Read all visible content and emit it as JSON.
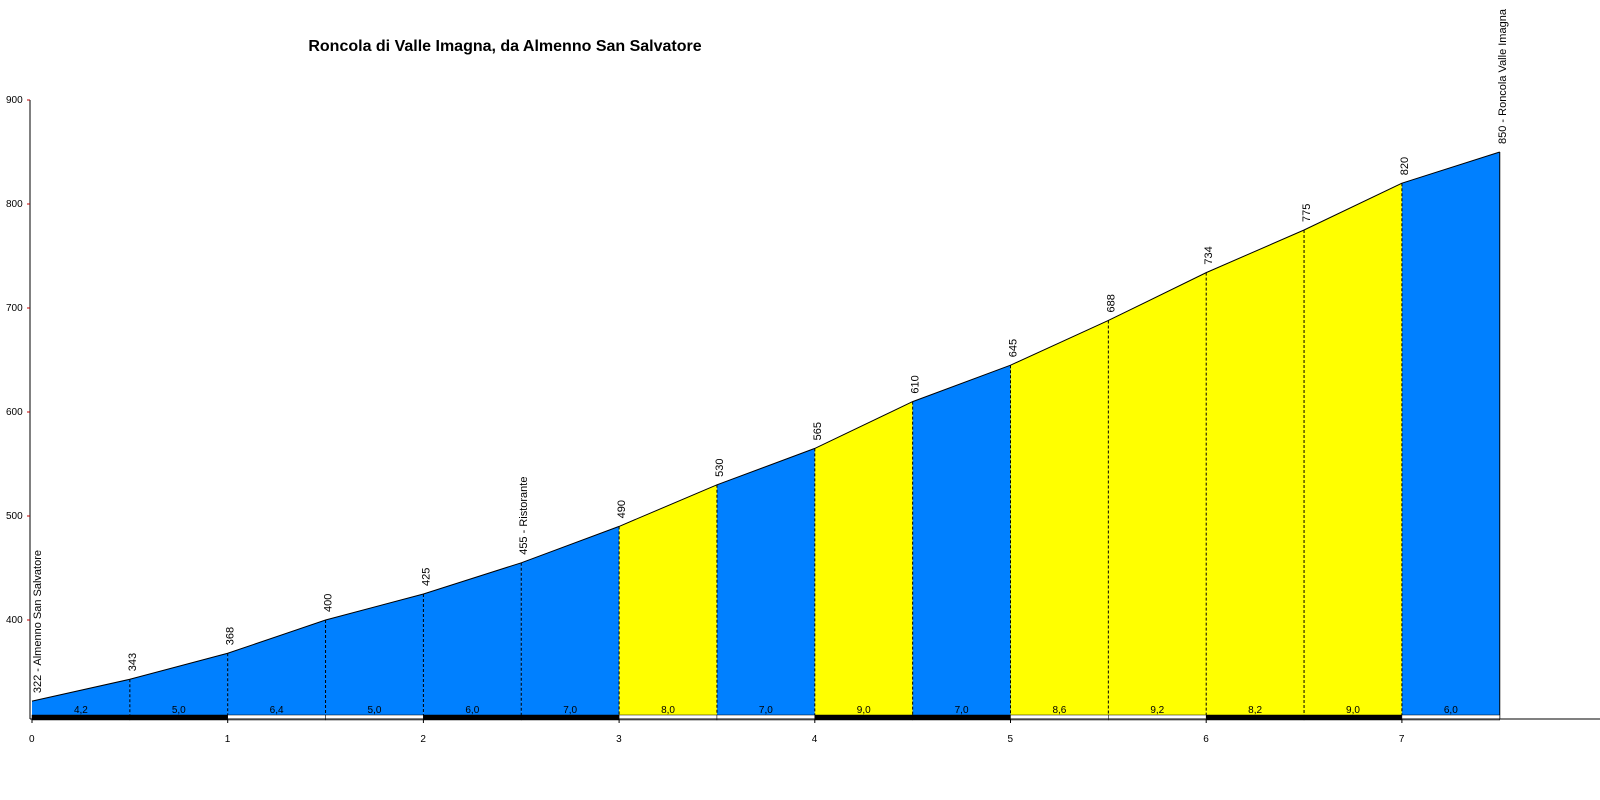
{
  "chart_data": {
    "type": "area",
    "title": "Roncola di Valle Imagna, da Almenno San Salvatore",
    "xlabel": "",
    "ylabel": "",
    "xlim": [
      0,
      7.5
    ],
    "ylim": [
      300,
      900
    ],
    "y_ticks": [
      400,
      500,
      600,
      700,
      800,
      900
    ],
    "x_ticks": [
      0,
      1,
      2,
      3,
      4,
      5,
      6,
      7
    ],
    "grid": false,
    "points": [
      {
        "x": 0.0,
        "y": 322,
        "label": "322 - Almenno San Salvatore"
      },
      {
        "x": 0.5,
        "y": 343,
        "label": "343"
      },
      {
        "x": 1.0,
        "y": 368,
        "label": "368"
      },
      {
        "x": 1.5,
        "y": 400,
        "label": "400"
      },
      {
        "x": 2.0,
        "y": 425,
        "label": "425"
      },
      {
        "x": 2.5,
        "y": 455,
        "label": "455 - Ristorante"
      },
      {
        "x": 3.0,
        "y": 490,
        "label": "490"
      },
      {
        "x": 3.5,
        "y": 530,
        "label": "530"
      },
      {
        "x": 4.0,
        "y": 565,
        "label": "565"
      },
      {
        "x": 4.5,
        "y": 610,
        "label": "610"
      },
      {
        "x": 5.0,
        "y": 645,
        "label": "645"
      },
      {
        "x": 5.5,
        "y": 688,
        "label": "688"
      },
      {
        "x": 6.0,
        "y": 734,
        "label": "734"
      },
      {
        "x": 6.5,
        "y": 775,
        "label": "775"
      },
      {
        "x": 7.0,
        "y": 820,
        "label": "820"
      },
      {
        "x": 7.5,
        "y": 850,
        "label": "850 - Roncola Valle Imagna"
      }
    ],
    "segments": [
      {
        "grade": "4,2",
        "color": "#0080ff"
      },
      {
        "grade": "5,0",
        "color": "#0080ff"
      },
      {
        "grade": "6,4",
        "color": "#0080ff"
      },
      {
        "grade": "5,0",
        "color": "#0080ff"
      },
      {
        "grade": "6,0",
        "color": "#0080ff"
      },
      {
        "grade": "7,0",
        "color": "#0080ff"
      },
      {
        "grade": "8,0",
        "color": "#ffff00"
      },
      {
        "grade": "7,0",
        "color": "#0080ff"
      },
      {
        "grade": "9,0",
        "color": "#ffff00"
      },
      {
        "grade": "7,0",
        "color": "#0080ff"
      },
      {
        "grade": "8,6",
        "color": "#ffff00"
      },
      {
        "grade": "9,2",
        "color": "#ffff00"
      },
      {
        "grade": "8,2",
        "color": "#ffff00"
      },
      {
        "grade": "9,0",
        "color": "#ffff00"
      },
      {
        "grade": "6,0",
        "color": "#0080ff"
      }
    ],
    "colors": {
      "low": "#0080ff",
      "high": "#ffff00",
      "axis_tick": "#c00000"
    }
  }
}
